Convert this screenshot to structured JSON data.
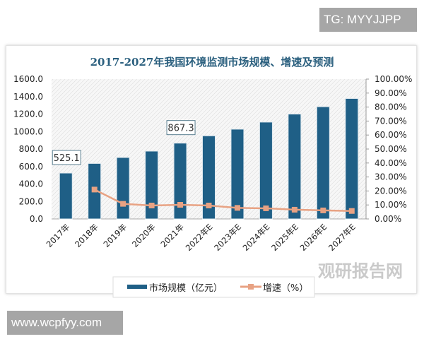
{
  "watermarks": {
    "top_right": "TG: MYYJJPP",
    "bottom_left": "www.wcpfyy.com",
    "logo": "观研报告网"
  },
  "colors": {
    "bar": "#1f5f86",
    "line": "#e8a283",
    "title": "#2a5f7e"
  },
  "chart_data": {
    "type": "bar+line",
    "title": "2017-2027年我国环境监测市场规模、增速及预测",
    "categories": [
      "2017年",
      "2018年",
      "2019年",
      "2020年",
      "2021年",
      "2022年E",
      "2023年E",
      "2024年E",
      "2025年E",
      "2026年E",
      "2027年E"
    ],
    "series": [
      {
        "name": "市场规模（亿元）",
        "type": "bar",
        "axis": "left",
        "values": [
          525.1,
          635,
          703,
          776,
          867.3,
          951,
          1027,
          1108,
          1200,
          1284,
          1378
        ]
      },
      {
        "name": "增速（%）",
        "type": "line",
        "axis": "right",
        "values": [
          null,
          21.0,
          10.8,
          9.6,
          10.1,
          9.6,
          7.9,
          7.6,
          6.6,
          6.1,
          5.7
        ]
      }
    ],
    "data_labels": [
      {
        "category": "2017年",
        "text": "525.1"
      },
      {
        "category": "2021年",
        "text": "867.3"
      }
    ],
    "ylim": [
      0,
      1600
    ],
    "yticks": [
      "0.0",
      "200.0",
      "400.0",
      "600.0",
      "800.0",
      "1000.0",
      "1200.0",
      "1400.0",
      "1600.0"
    ],
    "y2lim": [
      0,
      100
    ],
    "y2ticks": [
      "0.00%",
      "10.00%",
      "20.00%",
      "30.00%",
      "40.00%",
      "50.00%",
      "60.00%",
      "70.00%",
      "80.00%",
      "90.00%",
      "100.00%"
    ],
    "legend": "bottom",
    "grid": false
  }
}
